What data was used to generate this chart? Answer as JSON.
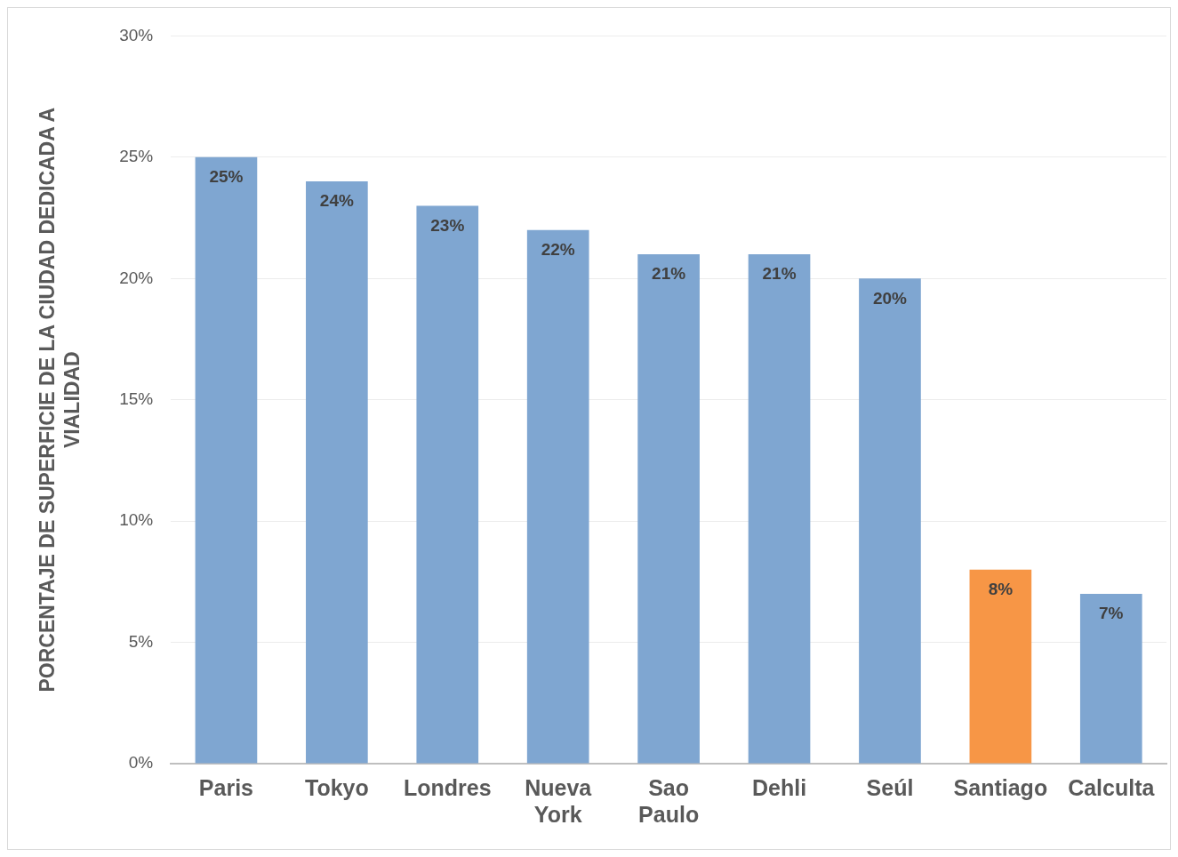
{
  "chart_data": {
    "type": "bar",
    "ylabel": "PORCENTAJE DE SUPERFICIE DE LA CIUDAD DEDICADA A VIALIDAD",
    "categories": [
      "Paris",
      "Tokyo",
      "Londres",
      "Nueva York",
      "Sao Paulo",
      "Dehli",
      "Seúl",
      "Santiago",
      "Calculta"
    ],
    "values": [
      25,
      24,
      23,
      22,
      21,
      21,
      20,
      8,
      7
    ],
    "colors": [
      "#7fa6d1",
      "#7fa6d1",
      "#7fa6d1",
      "#7fa6d1",
      "#7fa6d1",
      "#7fa6d1",
      "#7fa6d1",
      "#f79646",
      "#7fa6d1"
    ],
    "value_labels": [
      "25%",
      "24%",
      "23%",
      "22%",
      "21%",
      "21%",
      "20%",
      "8%",
      "7%"
    ],
    "ylim": [
      0,
      30
    ],
    "yticks": [
      {
        "value": 0,
        "label": "0%"
      },
      {
        "value": 5,
        "label": "5%"
      },
      {
        "value": 10,
        "label": "10%"
      },
      {
        "value": 15,
        "label": "15%"
      },
      {
        "value": 20,
        "label": "20%"
      },
      {
        "value": 25,
        "label": "25%"
      },
      {
        "value": 30,
        "label": "30%"
      }
    ],
    "grid": "y",
    "legend": false
  }
}
